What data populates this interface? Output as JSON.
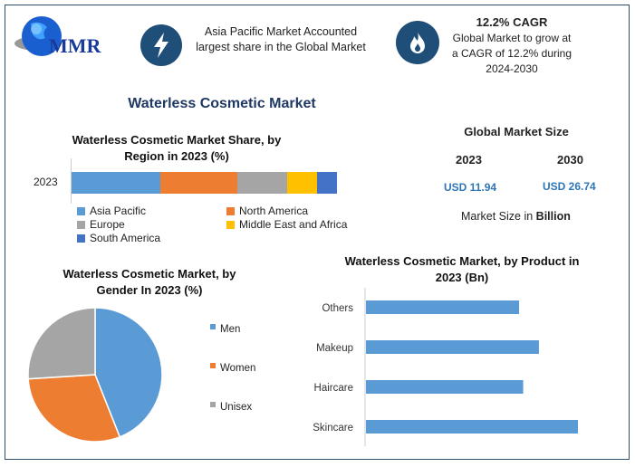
{
  "logo": {
    "text": "MMR"
  },
  "highlight1": {
    "icon": "lightning-icon",
    "text": "Asia Pacific Market Accounted largest share in the Global Market"
  },
  "highlight2": {
    "icon": "flame-icon",
    "title": "12.2% CAGR",
    "text": "Global Market to grow at a CAGR of 12.2% during 2024-2030"
  },
  "main_title": "Waterless Cosmetic Market",
  "market_size": {
    "title": "Global Market Size",
    "year1": "2023",
    "year2": "2030",
    "value1": "USD 11.94",
    "value2": "USD 26.74",
    "note_prefix": "Market Size in ",
    "note_bold": "Billion"
  },
  "colors": {
    "blue": "#5b9bd5",
    "orange": "#ed7d31",
    "gray": "#a5a5a5",
    "yellow": "#ffc000",
    "darkblue": "#4472c4",
    "accent": "#1f4e79",
    "value": "#2e75b6"
  },
  "chart_data": [
    {
      "type": "bar",
      "stacked": true,
      "orientation": "horizontal",
      "title": "Waterless Cosmetic Market Share, by Region in 2023 (%)",
      "categories": [
        "2023"
      ],
      "series": [
        {
          "name": "Asia Pacific",
          "values": [
            33.4
          ],
          "color": "#5b9bd5"
        },
        {
          "name": "North America",
          "values": [
            29.0
          ],
          "color": "#ed7d31"
        },
        {
          "name": "Europe",
          "values": [
            18.8
          ],
          "color": "#a5a5a5"
        },
        {
          "name": "Middle East and Africa",
          "values": [
            11.3
          ],
          "color": "#ffc000"
        },
        {
          "name": "South America",
          "values": [
            7.5
          ],
          "color": "#4472c4"
        }
      ],
      "legend": "bottom"
    },
    {
      "type": "pie",
      "title": "Waterless Cosmetic Market, by Gender In 2023 (%)",
      "labels": [
        "Men",
        "Women",
        "Unisex"
      ],
      "values": [
        44,
        30,
        26
      ],
      "colors": [
        "#5b9bd5",
        "#ed7d31",
        "#a5a5a5"
      ],
      "legend": "right"
    },
    {
      "type": "bar",
      "orientation": "horizontal",
      "title": "Waterless Cosmetic Market, by Product in 2023 (Bn)",
      "categories": [
        "Others",
        "Makeup",
        "Haircare",
        "Skincare"
      ],
      "values": [
        2.63,
        2.97,
        2.7,
        3.64
      ],
      "color": "#5b9bd5",
      "xlim": [
        0,
        4.2
      ]
    }
  ]
}
